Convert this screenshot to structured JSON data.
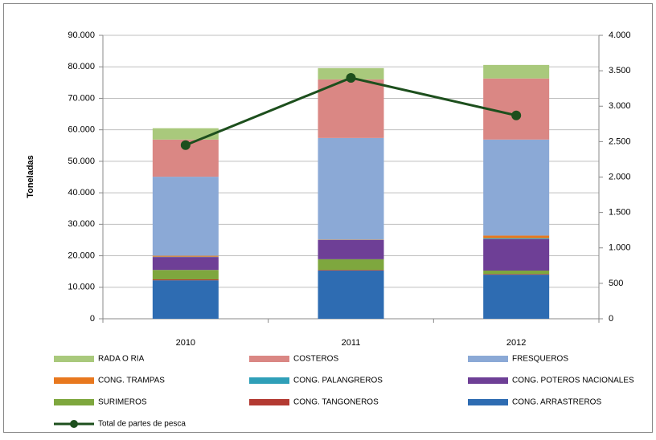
{
  "chart_data": {
    "type": "stacked_bar_line",
    "y_label": "Toneladas",
    "categories": [
      "2010",
      "2011",
      "2012"
    ],
    "series": [
      {
        "name": "RADA O RIA",
        "color": "#a9c97c",
        "values": [
          3600,
          3600,
          4300
        ]
      },
      {
        "name": "COSTEROS",
        "color": "#da8784",
        "values": [
          11800,
          18600,
          19400
        ]
      },
      {
        "name": "FRESQUEROS",
        "color": "#8ba9d6",
        "values": [
          25100,
          32300,
          30500
        ]
      },
      {
        "name": "CONG. TRAMPAS",
        "color": "#e8781e",
        "values": [
          300,
          100,
          800
        ]
      },
      {
        "name": "CONG. PALANGREROS",
        "color": "#2f9fb8",
        "values": [
          100,
          0,
          300
        ]
      },
      {
        "name": "CONG. POTEROS NACIONALES",
        "color": "#6e3f96",
        "values": [
          4100,
          6100,
          10000
        ]
      },
      {
        "name": "SURIMEROS",
        "color": "#7ea73e",
        "values": [
          3000,
          3400,
          1100
        ]
      },
      {
        "name": "CONG. TANGONEROS",
        "color": "#b33a32",
        "values": [
          300,
          200,
          200
        ]
      },
      {
        "name": "CONG. ARRASTREROS",
        "color": "#2e6cb2",
        "values": [
          12200,
          15300,
          14000
        ]
      },
      {
        "name": "Total de partes de pesca",
        "color": "#1d4f1d",
        "axis": "y2",
        "values": [
          2450,
          3400,
          2870
        ]
      }
    ],
    "ylim": [
      0,
      90000
    ],
    "yticks": [
      0,
      {
        "value": 10000,
        "label": "10.000"
      },
      {
        "value": 20000,
        "label": "20.000"
      },
      {
        "value": 30000,
        "label": "30.000"
      },
      {
        "value": 40000,
        "label": "40.000"
      },
      {
        "value": 50000,
        "label": "50.000"
      },
      {
        "value": 60000,
        "label": "60.000"
      },
      {
        "value": 70000,
        "label": "70.000"
      },
      {
        "value": 80000,
        "label": "80.000"
      },
      {
        "value": 90000,
        "label": "90.000"
      }
    ],
    "y2lim": [
      0,
      4000
    ],
    "y2ticks": [
      0,
      500,
      {
        "value": 1000,
        "label": "1.000"
      },
      {
        "value": 1500,
        "label": "1.500"
      },
      {
        "value": 2000,
        "label": "2.000"
      },
      {
        "value": 2500,
        "label": "2.500"
      },
      {
        "value": 3000,
        "label": "3.000"
      },
      {
        "value": 3500,
        "label": "3.500"
      },
      {
        "value": 4000,
        "label": "4.000"
      }
    ],
    "grid": true
  }
}
